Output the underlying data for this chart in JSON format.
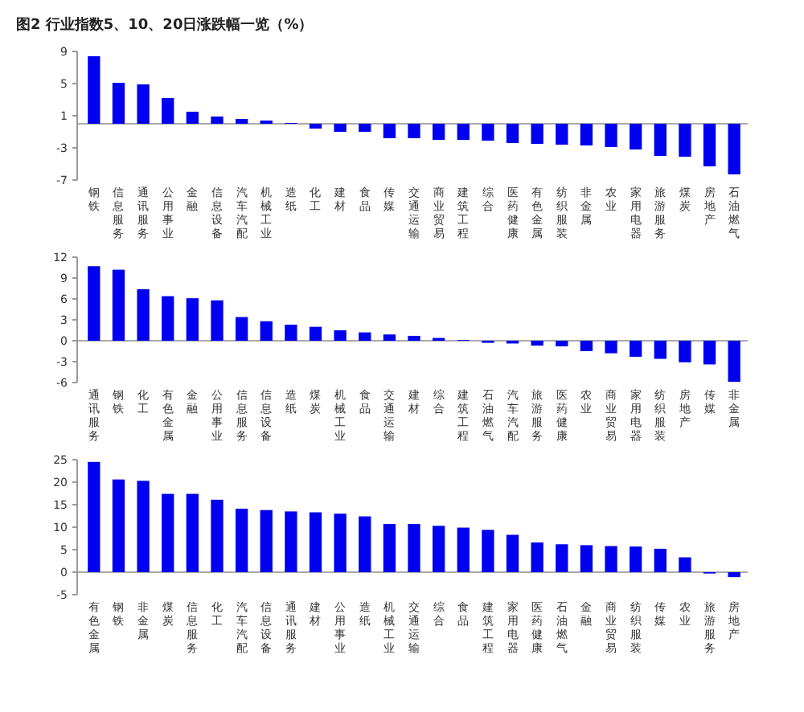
{
  "chart_data": [
    {
      "type": "bar",
      "title": "图2 行业指数5、10、20日涨跌幅一览（%）",
      "categories": [
        "钢铁",
        "信息服务",
        "通讯服务",
        "公用事业",
        "金融",
        "信息设备",
        "汽车汽配",
        "机械工业",
        "造纸",
        "化工",
        "建材",
        "食品",
        "传媒",
        "交通运输",
        "商业贸易",
        "建筑工程",
        "综合",
        "医药健康",
        "有色金属",
        "纺织服装",
        "非金属",
        "农业",
        "家用电器",
        "旅游服务",
        "煤炭",
        "房地产",
        "石油燃气"
      ],
      "values": [
        8.4,
        5.1,
        4.9,
        3.2,
        1.5,
        0.9,
        0.6,
        0.4,
        0.1,
        -0.6,
        -1.0,
        -1.0,
        -1.8,
        -1.8,
        -2.0,
        -2.0,
        -2.1,
        -2.4,
        -2.5,
        -2.6,
        -2.7,
        -2.9,
        -3.2,
        -4.0,
        -4.1,
        -5.3,
        -6.3
      ],
      "color": "#0000f0",
      "ylim": [
        -7,
        9
      ],
      "yticks": [
        9,
        5,
        1,
        -3,
        -7
      ]
    },
    {
      "type": "bar",
      "categories": [
        "通讯服务",
        "钢铁",
        "化工",
        "有色金属",
        "金融",
        "公用事业",
        "信息服务",
        "信息设备",
        "造纸",
        "煤炭",
        "机械工业",
        "食品",
        "交通运输",
        "建材",
        "综合",
        "建筑工程",
        "石油燃气",
        "汽车汽配",
        "旅游服务",
        "医药健康",
        "农业",
        "商业贸易",
        "家用电器",
        "纺织服装",
        "房地产",
        "传媒",
        "非金属"
      ],
      "values": [
        10.7,
        10.2,
        7.4,
        6.4,
        6.1,
        5.8,
        3.4,
        2.8,
        2.3,
        2.0,
        1.5,
        1.2,
        0.9,
        0.7,
        0.4,
        0.1,
        -0.3,
        -0.4,
        -0.7,
        -0.8,
        -1.5,
        -1.8,
        -2.3,
        -2.6,
        -3.1,
        -3.4,
        -5.9
      ],
      "color": "#0000f0",
      "ylim": [
        -6,
        12
      ],
      "yticks": [
        12,
        9,
        6,
        3,
        0,
        -3,
        -6
      ]
    },
    {
      "type": "bar",
      "categories": [
        "有色金属",
        "钢铁",
        "非金属",
        "煤炭",
        "信息服务",
        "化工",
        "汽车汽配",
        "信息设备",
        "通讯服务",
        "建材",
        "公用事业",
        "造纸",
        "机械工业",
        "交通运输",
        "综合",
        "食品",
        "建筑工程",
        "家用电器",
        "医药健康",
        "石油燃气",
        "金融",
        "商业贸易",
        "纺织服装",
        "传媒",
        "农业",
        "旅游服务",
        "房地产"
      ],
      "values": [
        24.5,
        20.6,
        20.3,
        17.4,
        17.4,
        16.1,
        14.1,
        13.8,
        13.5,
        13.3,
        13.0,
        12.4,
        10.7,
        10.7,
        10.3,
        9.9,
        9.4,
        8.3,
        6.6,
        6.2,
        6.0,
        5.8,
        5.7,
        5.2,
        3.3,
        -0.3,
        -1.1
      ],
      "color": "#0000f0",
      "ylim": [
        -5,
        25
      ],
      "yticks": [
        25,
        20,
        15,
        10,
        5,
        0,
        -5
      ]
    }
  ]
}
